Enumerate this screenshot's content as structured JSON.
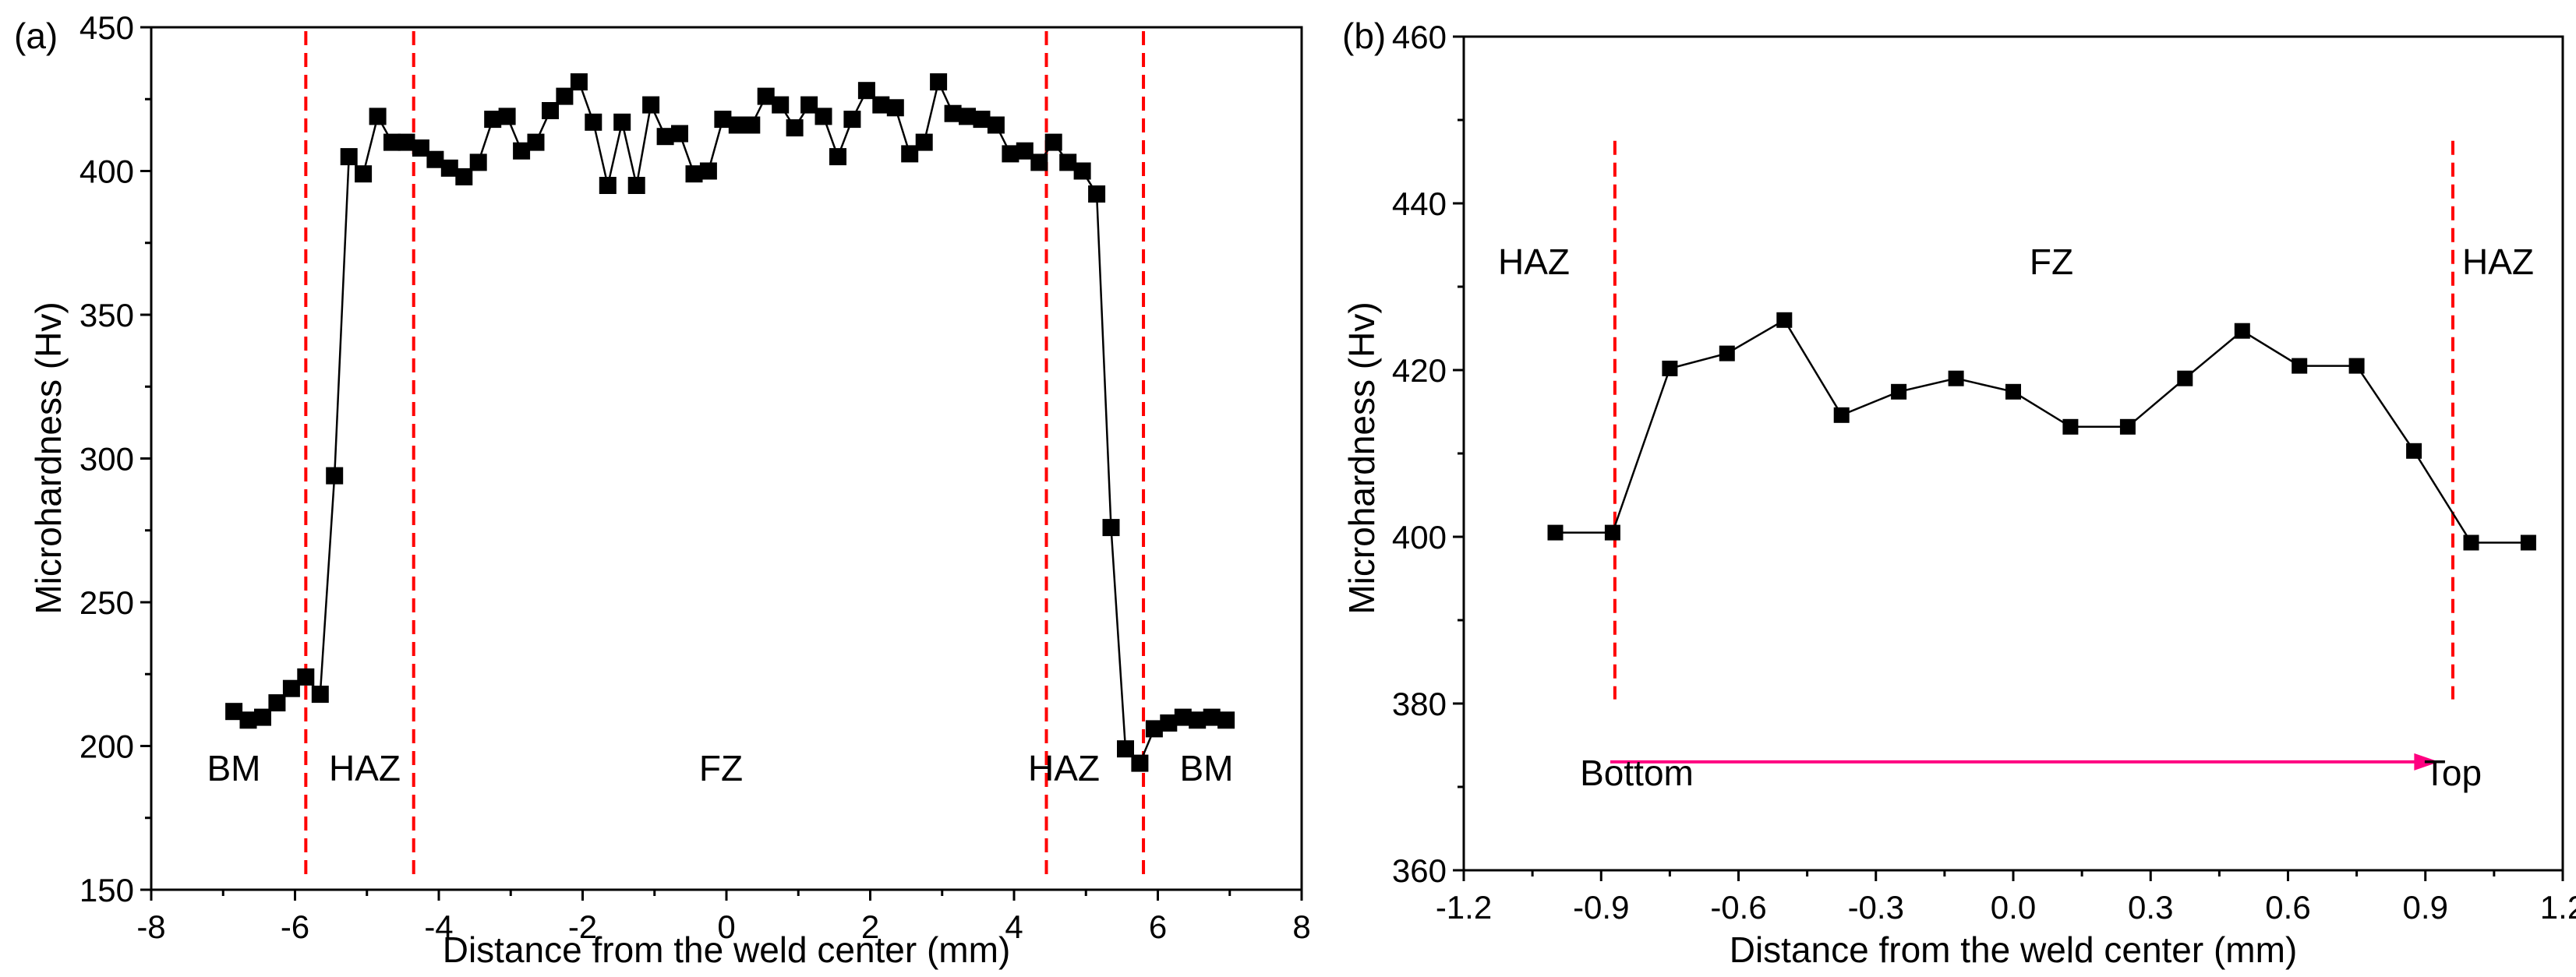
{
  "chart_data": [
    {
      "panel_label": "(a)",
      "type": "scatter",
      "xlabel": "Distance from the weld center (mm)",
      "ylabel": "Microhardness (Hv)",
      "xlim": [
        -8,
        8
      ],
      "ylim": [
        150,
        450
      ],
      "xticks": [
        -8,
        -6,
        -4,
        -2,
        0,
        2,
        4,
        6,
        8
      ],
      "yticks": [
        150,
        200,
        250,
        300,
        350,
        400,
        450
      ],
      "xtick_labels": [
        "-8",
        "-6",
        "-4",
        "-2",
        "0",
        "2",
        "4",
        "6",
        "8"
      ],
      "ytick_labels": [
        "150",
        "200",
        "250",
        "300",
        "350",
        "400",
        "450"
      ],
      "series": [
        {
          "name": "Microhardness",
          "marker": "square",
          "line": true,
          "x": [
            -6.85,
            -6.65,
            -6.45,
            -6.25,
            -6.05,
            -5.85,
            -5.65,
            -5.45,
            -5.25,
            -5.05,
            -4.85,
            -4.65,
            -4.45,
            -4.25,
            -4.05,
            -3.85,
            -3.65,
            -3.45,
            -3.25,
            -3.05,
            -2.85,
            -2.65,
            -2.45,
            -2.25,
            -2.05,
            -1.85,
            -1.65,
            -1.45,
            -1.25,
            -1.05,
            -0.85,
            -0.65,
            -0.45,
            -0.25,
            -0.05,
            0.15,
            0.35,
            0.55,
            0.75,
            0.95,
            1.15,
            1.35,
            1.55,
            1.75,
            1.95,
            2.15,
            2.35,
            2.55,
            2.75,
            2.95,
            3.15,
            3.35,
            3.55,
            3.75,
            3.95,
            4.15,
            4.35,
            4.55,
            4.75,
            4.95,
            5.15,
            5.35,
            5.55,
            5.75,
            5.95,
            6.15,
            6.35,
            6.55,
            6.75,
            6.95
          ],
          "y": [
            212,
            209,
            210,
            215,
            220,
            224,
            218,
            294,
            405,
            399,
            419,
            410,
            410,
            408,
            404,
            401,
            398,
            403,
            418,
            419,
            407,
            410,
            421,
            426,
            431,
            417,
            395,
            417,
            395,
            423,
            412,
            413,
            399,
            400,
            418,
            416,
            416,
            426,
            423,
            415,
            423,
            419,
            405,
            418,
            428,
            423,
            422,
            406,
            410,
            431,
            420,
            419,
            418,
            416,
            406,
            407,
            403,
            410,
            403,
            400,
            392,
            276,
            199,
            194,
            206,
            208,
            210,
            209,
            210,
            209
          ]
        }
      ],
      "vlines": [
        -5.85,
        -4.35,
        4.45,
        5.8
      ],
      "annotations": [
        "BM",
        "HAZ",
        "FZ",
        "HAZ",
        "BM"
      ]
    },
    {
      "panel_label": "(b)",
      "type": "scatter",
      "xlabel": "Distance from the weld center (mm)",
      "ylabel": "Microhardness (Hv)",
      "xlim": [
        -1.2,
        1.2
      ],
      "ylim": [
        360,
        460
      ],
      "xticks": [
        -1.2,
        -0.9,
        -0.6,
        -0.3,
        0.0,
        0.3,
        0.6,
        0.9,
        1.2
      ],
      "yticks": [
        360,
        380,
        400,
        420,
        440,
        460
      ],
      "xtick_labels": [
        "-1.2",
        "-0.9",
        "-0.6",
        "-0.3",
        "0.0",
        "0.3",
        "0.6",
        "0.9",
        "1.2"
      ],
      "ytick_labels": [
        "360",
        "380",
        "400",
        "420",
        "440",
        "460"
      ],
      "series": [
        {
          "name": "Microhardness",
          "marker": "square",
          "line": true,
          "x": [
            -1.0,
            -0.875,
            -0.75,
            -0.625,
            -0.5,
            -0.375,
            -0.25,
            -0.125,
            0.0,
            0.125,
            0.25,
            0.375,
            0.5,
            0.625,
            0.75,
            0.875,
            1.0,
            1.125
          ],
          "y": [
            400.5,
            400.5,
            420.2,
            422.0,
            426.0,
            414.6,
            417.4,
            419.0,
            417.4,
            413.2,
            413.2,
            419.0,
            424.7,
            420.5,
            420.5,
            410.3,
            399.3,
            399.3
          ]
        }
      ],
      "vlines": [
        -0.87,
        0.96
      ],
      "annotations": [
        "HAZ",
        "FZ",
        "HAZ"
      ],
      "arrow": {
        "from": -0.88,
        "to": 0.93,
        "y": 373,
        "color": "#ff0080"
      },
      "arrow_labels": [
        "Bottom",
        "Top"
      ]
    }
  ],
  "colors": {
    "marker": "#000000",
    "line": "#000000",
    "vline": "#ff0000",
    "arrow": "#ff0080",
    "axis": "#000000"
  }
}
